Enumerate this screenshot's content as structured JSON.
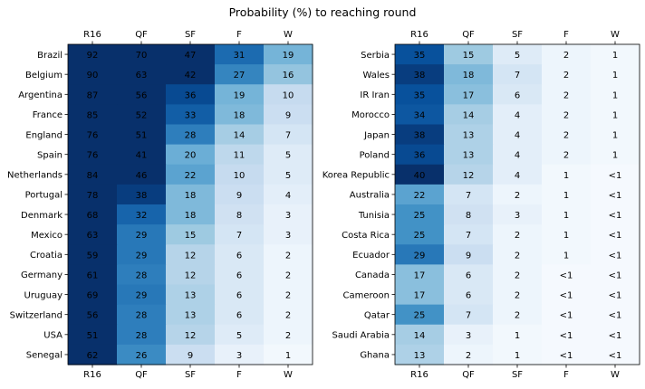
{
  "chart_data": {
    "type": "heatmap",
    "title": "Probability (%) to reaching round",
    "colormap": "Blues",
    "value_range": [
      0,
      40
    ],
    "panels": [
      {
        "columns": [
          "R16",
          "QF",
          "SF",
          "F",
          "W"
        ],
        "rows": [
          "Brazil",
          "Belgium",
          "Argentina",
          "France",
          "England",
          "Spain",
          "Netherlands",
          "Portugal",
          "Denmark",
          "Mexico",
          "Croatia",
          "Germany",
          "Uruguay",
          "Switzerland",
          "USA",
          "Senegal"
        ],
        "values": [
          [
            92,
            70,
            47,
            31,
            19
          ],
          [
            90,
            63,
            42,
            27,
            16
          ],
          [
            87,
            56,
            36,
            19,
            10
          ],
          [
            85,
            52,
            33,
            18,
            9
          ],
          [
            76,
            51,
            28,
            14,
            7
          ],
          [
            76,
            41,
            20,
            11,
            5
          ],
          [
            84,
            46,
            22,
            10,
            5
          ],
          [
            78,
            38,
            18,
            9,
            4
          ],
          [
            68,
            32,
            18,
            8,
            3
          ],
          [
            63,
            29,
            15,
            7,
            3
          ],
          [
            59,
            29,
            12,
            6,
            2
          ],
          [
            61,
            28,
            12,
            6,
            2
          ],
          [
            69,
            29,
            13,
            6,
            2
          ],
          [
            56,
            28,
            13,
            6,
            2
          ],
          [
            51,
            28,
            12,
            5,
            2
          ],
          [
            62,
            26,
            9,
            3,
            1
          ]
        ]
      },
      {
        "columns": [
          "R16",
          "QF",
          "SF",
          "F",
          "W"
        ],
        "rows": [
          "Serbia",
          "Wales",
          "IR Iran",
          "Morocco",
          "Japan",
          "Poland",
          "Korea Republic",
          "Australia",
          "Tunisia",
          "Costa Rica",
          "Ecuador",
          "Canada",
          "Cameroon",
          "Qatar",
          "Saudi Arabia",
          "Ghana"
        ],
        "values": [
          [
            "35",
            "15",
            "5",
            "2",
            "1"
          ],
          [
            "38",
            "18",
            "7",
            "2",
            "1"
          ],
          [
            "35",
            "17",
            "6",
            "2",
            "1"
          ],
          [
            "34",
            "14",
            "4",
            "2",
            "1"
          ],
          [
            "38",
            "13",
            "4",
            "2",
            "1"
          ],
          [
            "36",
            "13",
            "4",
            "2",
            "1"
          ],
          [
            "40",
            "12",
            "4",
            "1",
            "<1"
          ],
          [
            "22",
            "7",
            "2",
            "1",
            "<1"
          ],
          [
            "25",
            "8",
            "3",
            "1",
            "<1"
          ],
          [
            "25",
            "7",
            "2",
            "1",
            "<1"
          ],
          [
            "29",
            "9",
            "2",
            "1",
            "<1"
          ],
          [
            "17",
            "6",
            "2",
            "<1",
            "<1"
          ],
          [
            "17",
            "6",
            "2",
            "<1",
            "<1"
          ],
          [
            "25",
            "7",
            "2",
            "<1",
            "<1"
          ],
          [
            "14",
            "3",
            "1",
            "<1",
            "<1"
          ],
          [
            "13",
            "2",
            "1",
            "<1",
            "<1"
          ]
        ]
      }
    ]
  }
}
